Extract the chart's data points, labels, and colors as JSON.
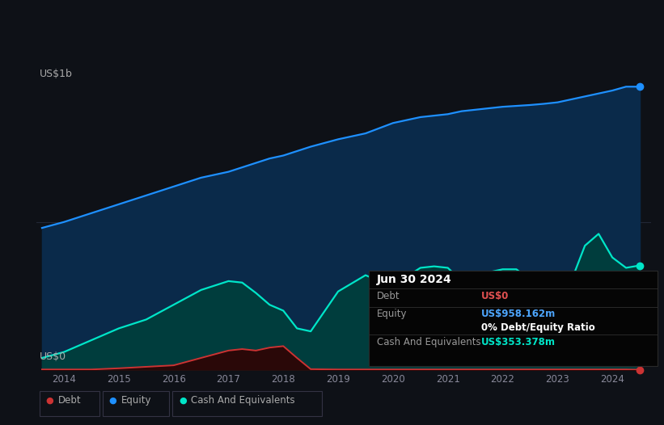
{
  "background_color": "#0e1117",
  "plot_bg_color": "#0e1117",
  "title_box": {
    "date": "Jun 30 2024",
    "debt_label": "Debt",
    "debt_value": "US$0",
    "debt_color": "#e05050",
    "equity_label": "Equity",
    "equity_value": "US$958.162m",
    "equity_color": "#4da6ff",
    "ratio_text": "0% Debt/Equity Ratio",
    "cash_label": "Cash And Equivalents",
    "cash_value": "US$353.378m",
    "cash_color": "#00e5c8",
    "box_bg": "#050505",
    "box_border": "#2a2a2a"
  },
  "ylabel_top": "US$1b",
  "ylabel_bottom": "US$0",
  "equity_color": "#1e90ff",
  "equity_fill": "#0a2a4a",
  "cash_color": "#00e5c8",
  "cash_fill": "#003d3d",
  "debt_color": "#cc3333",
  "debt_fill": "#2a0808",
  "years": [
    2013.6,
    2014.0,
    2014.5,
    2015.0,
    2015.5,
    2016.0,
    2016.5,
    2017.0,
    2017.25,
    2017.5,
    2017.75,
    2018.0,
    2018.25,
    2018.5,
    2019.0,
    2019.5,
    2020.0,
    2020.25,
    2020.5,
    2020.75,
    2021.0,
    2021.25,
    2021.5,
    2021.75,
    2022.0,
    2022.25,
    2022.5,
    2022.75,
    2023.0,
    2023.25,
    2023.5,
    2023.75,
    2024.0,
    2024.25,
    2024.5
  ],
  "equity": [
    0.48,
    0.5,
    0.53,
    0.56,
    0.59,
    0.62,
    0.65,
    0.67,
    0.685,
    0.7,
    0.715,
    0.725,
    0.74,
    0.755,
    0.78,
    0.8,
    0.835,
    0.845,
    0.855,
    0.86,
    0.865,
    0.875,
    0.88,
    0.885,
    0.89,
    0.893,
    0.896,
    0.9,
    0.905,
    0.915,
    0.925,
    0.935,
    0.945,
    0.958,
    0.958
  ],
  "cash": [
    0.04,
    0.06,
    0.1,
    0.14,
    0.17,
    0.22,
    0.27,
    0.3,
    0.295,
    0.26,
    0.22,
    0.2,
    0.14,
    0.13,
    0.265,
    0.32,
    0.28,
    0.315,
    0.345,
    0.35,
    0.345,
    0.3,
    0.275,
    0.33,
    0.34,
    0.34,
    0.305,
    0.225,
    0.22,
    0.3,
    0.42,
    0.46,
    0.38,
    0.345,
    0.353
  ],
  "debt": [
    0.001,
    0.001,
    0.001,
    0.005,
    0.01,
    0.015,
    0.04,
    0.065,
    0.07,
    0.065,
    0.075,
    0.08,
    0.04,
    0.002,
    0.001,
    0.001,
    0.001,
    0.001,
    0.001,
    0.001,
    0.001,
    0.001,
    0.001,
    0.001,
    0.001,
    0.001,
    0.001,
    0.001,
    0.001,
    0.001,
    0.001,
    0.001,
    0.001,
    0.001,
    0.0
  ],
  "xlim": [
    2013.5,
    2024.7
  ],
  "ylim": [
    0.0,
    1.05
  ],
  "xtick_years": [
    2014,
    2015,
    2016,
    2017,
    2018,
    2019,
    2020,
    2021,
    2022,
    2023,
    2024
  ],
  "grid_color": "#1e2535",
  "grid_alpha": 0.8,
  "hline_y": 0.5,
  "hline_color": "#252a3a"
}
